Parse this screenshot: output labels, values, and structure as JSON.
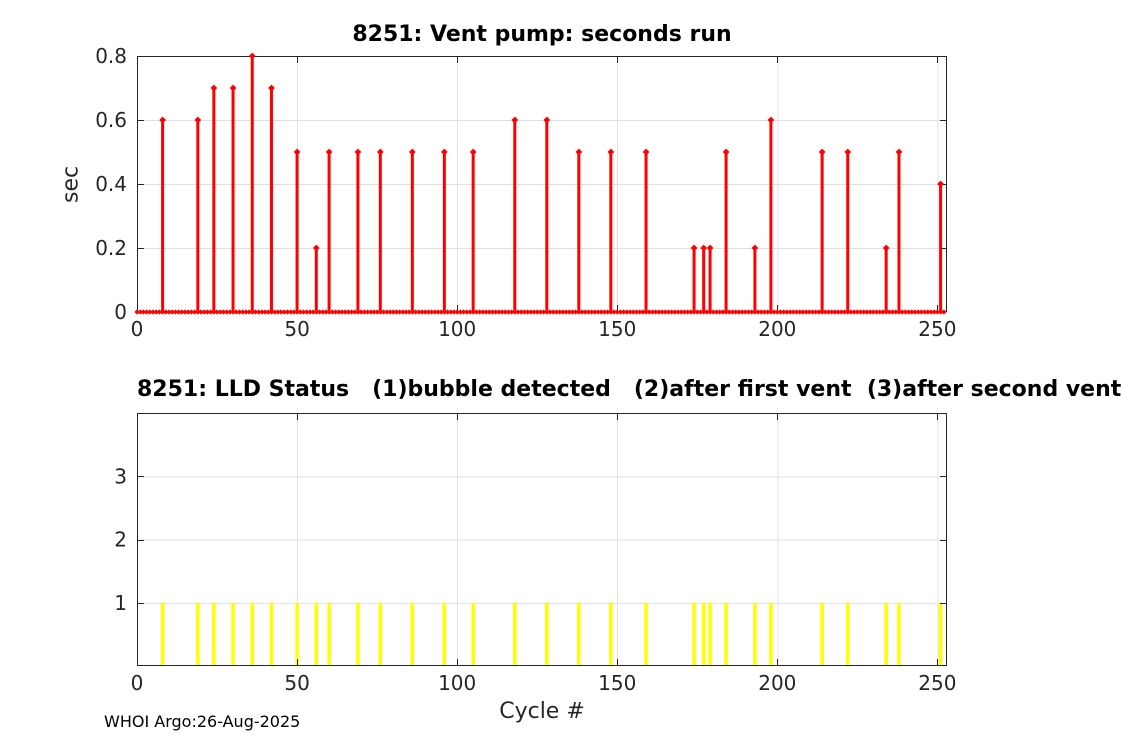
{
  "figure": {
    "footer": "WHOI Argo:26-Aug-2025"
  },
  "colors": {
    "stem": "#ff0000",
    "bar": "#ffff00",
    "axis": "#262626",
    "grid": "#e0e0e0",
    "background": "#ffffff"
  },
  "chart_data": [
    {
      "type": "stem",
      "title": "8251: Vent pump: seconds run",
      "xlabel": "",
      "ylabel": "sec",
      "xlim": [
        0,
        253
      ],
      "ylim": [
        0,
        0.8
      ],
      "xticks": [
        0,
        50,
        100,
        150,
        200,
        250
      ],
      "yticks": [
        0,
        0.2,
        0.4,
        0.6,
        0.8
      ],
      "grid": true,
      "legend": "none",
      "points_format": "[cycle, seconds_run]",
      "zero_cycles_range": [
        0,
        252
      ],
      "points": [
        [
          8,
          0.6
        ],
        [
          19,
          0.6
        ],
        [
          24,
          0.7
        ],
        [
          30,
          0.7
        ],
        [
          36,
          0.8
        ],
        [
          42,
          0.7
        ],
        [
          50,
          0.5
        ],
        [
          56,
          0.2
        ],
        [
          60,
          0.5
        ],
        [
          69,
          0.5
        ],
        [
          76,
          0.5
        ],
        [
          86,
          0.5
        ],
        [
          96,
          0.5
        ],
        [
          105,
          0.5
        ],
        [
          118,
          0.6
        ],
        [
          128,
          0.6
        ],
        [
          138,
          0.5
        ],
        [
          148,
          0.5
        ],
        [
          159,
          0.5
        ],
        [
          174,
          0.2
        ],
        [
          177,
          0.2
        ],
        [
          179,
          0.2
        ],
        [
          184,
          0.5
        ],
        [
          193,
          0.2
        ],
        [
          198,
          0.6
        ],
        [
          214,
          0.5
        ],
        [
          222,
          0.5
        ],
        [
          234,
          0.2
        ],
        [
          238,
          0.5
        ],
        [
          251,
          0.4
        ]
      ]
    },
    {
      "type": "bar",
      "title": "8251: LLD Status   (1)bubble detected   (2)after first vent  (3)after second vent",
      "xlabel": "Cycle #",
      "ylabel": "",
      "xlim": [
        0,
        253
      ],
      "ylim": [
        0,
        4
      ],
      "xticks": [
        0,
        50,
        100,
        150,
        200,
        250
      ],
      "yticks": [
        1,
        2,
        3
      ],
      "grid": true,
      "legend": "none",
      "bar_value": 1,
      "bar_cycles": [
        8,
        19,
        24,
        30,
        36,
        42,
        50,
        56,
        60,
        69,
        76,
        86,
        96,
        105,
        118,
        128,
        138,
        148,
        159,
        174,
        177,
        179,
        184,
        193,
        198,
        214,
        222,
        234,
        238,
        251
      ]
    }
  ]
}
